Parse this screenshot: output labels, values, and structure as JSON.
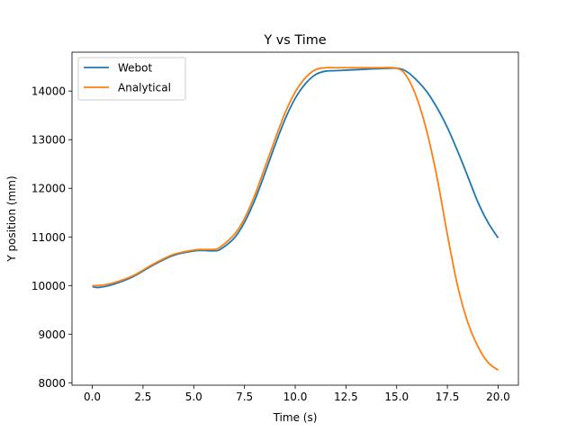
{
  "chart_data": {
    "type": "line",
    "title": "Y vs Time",
    "xlabel": "Time (s)",
    "ylabel": "Y position (mm)",
    "xlim": [
      -1.0,
      21.0
    ],
    "ylim": [
      7950,
      14800
    ],
    "xticks": [
      0.0,
      2.5,
      5.0,
      7.5,
      10.0,
      12.5,
      15.0,
      17.5,
      20.0
    ],
    "xtick_labels": [
      "0.0",
      "2.5",
      "5.0",
      "7.5",
      "10.0",
      "12.5",
      "15.0",
      "17.5",
      "20.0"
    ],
    "yticks": [
      8000,
      9000,
      10000,
      11000,
      12000,
      13000,
      14000
    ],
    "ytick_labels": [
      "8000",
      "9000",
      "10000",
      "11000",
      "12000",
      "13000",
      "14000"
    ],
    "grid": false,
    "legend_position": "upper-left",
    "series": [
      {
        "name": "Webot",
        "color": "#1f77b4",
        "x": [
          0.0,
          0.3,
          1.0,
          2.0,
          3.0,
          4.0,
          5.0,
          5.5,
          6.0,
          6.3,
          7.0,
          7.5,
          8.0,
          8.5,
          9.0,
          9.5,
          10.0,
          10.5,
          11.0,
          11.5,
          12.0,
          13.0,
          14.0,
          15.0,
          15.5,
          16.0,
          16.5,
          17.0,
          17.5,
          18.0,
          18.5,
          19.0,
          19.5,
          20.0
        ],
        "y": [
          9980,
          9960,
          10020,
          10180,
          10420,
          10620,
          10710,
          10720,
          10715,
          10740,
          10980,
          11300,
          11750,
          12300,
          12880,
          13420,
          13850,
          14150,
          14340,
          14410,
          14420,
          14440,
          14460,
          14470,
          14400,
          14220,
          13980,
          13650,
          13250,
          12770,
          12250,
          11720,
          11300,
          10980
        ]
      },
      {
        "name": "Analytical",
        "color": "#ff7f0e",
        "x": [
          0.0,
          0.3,
          1.0,
          2.0,
          3.0,
          4.0,
          5.0,
          5.5,
          6.0,
          6.3,
          7.0,
          7.5,
          8.0,
          8.5,
          9.0,
          9.5,
          10.0,
          10.5,
          11.0,
          11.5,
          12.0,
          13.0,
          14.0,
          15.0,
          15.5,
          16.0,
          16.5,
          17.0,
          17.5,
          18.0,
          18.5,
          19.0,
          19.5,
          20.0
        ],
        "y": [
          10000,
          10000,
          10050,
          10200,
          10440,
          10640,
          10730,
          10740,
          10745,
          10790,
          11050,
          11380,
          11850,
          12420,
          13000,
          13550,
          13980,
          14270,
          14440,
          14480,
          14480,
          14480,
          14480,
          14470,
          14300,
          13850,
          13150,
          12200,
          11050,
          10000,
          9250,
          8750,
          8420,
          8260
        ]
      }
    ]
  }
}
